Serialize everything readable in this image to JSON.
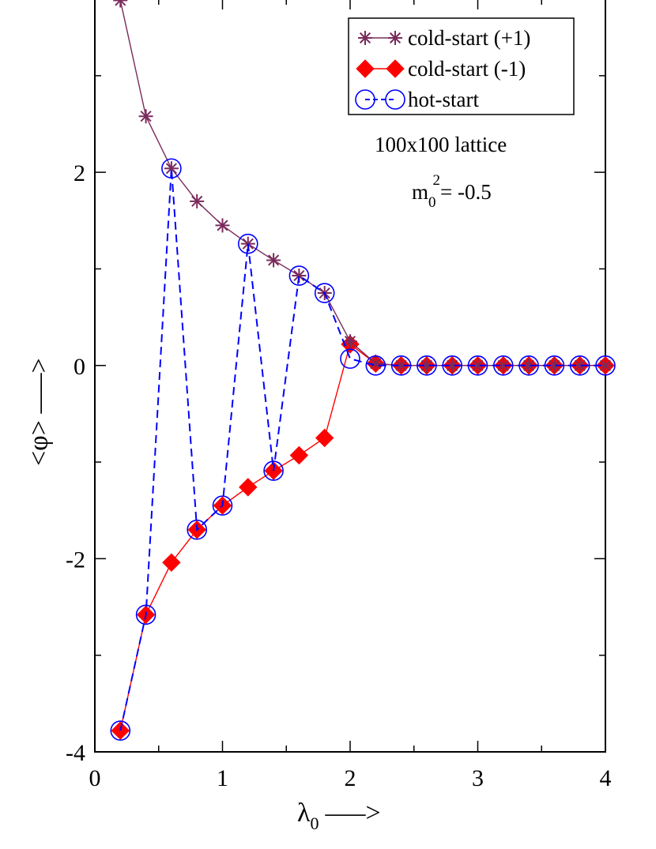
{
  "chart_data": {
    "type": "line",
    "xlabel": "λ",
    "xlabel_subscript": "0",
    "xlabel_arrow": "—–>",
    "ylabel": "<φ> —–>",
    "xlim": [
      0,
      4
    ],
    "ylim": [
      -4,
      3.8
    ],
    "x_ticks": [
      0,
      1,
      2,
      3,
      4
    ],
    "x_tick_labels": [
      "0",
      "1",
      "2",
      "3",
      "4"
    ],
    "y_ticks": [
      -4,
      -2,
      0,
      2
    ],
    "y_tick_labels": [
      "-4",
      "-2",
      "0",
      "2"
    ],
    "x_minor_step": 0.5,
    "y_minor_step": 1,
    "grid": false,
    "legend_position": "top-right",
    "series": [
      {
        "name": "cold-start (+1)",
        "color": "#7a2b5c",
        "marker": "asterisk",
        "line": "solid",
        "x": [
          0.2,
          0.4,
          0.6,
          0.8,
          1.0,
          1.2,
          1.4,
          1.6,
          1.8,
          2.0,
          2.2,
          2.4,
          2.6,
          2.8,
          3.0,
          3.2,
          3.4,
          3.6,
          3.8,
          4.0
        ],
        "y": [
          3.78,
          2.58,
          2.04,
          1.7,
          1.45,
          1.26,
          1.09,
          0.93,
          0.75,
          0.25,
          0.02,
          0.0,
          0.0,
          0.0,
          0.0,
          0.0,
          0.0,
          0.0,
          0.0,
          0.0
        ]
      },
      {
        "name": "cold-start (-1)",
        "color": "#ff0000",
        "marker": "diamond",
        "line": "solid",
        "x": [
          0.2,
          0.4,
          0.6,
          0.8,
          1.0,
          1.2,
          1.4,
          1.6,
          1.8,
          2.0,
          2.2,
          2.4,
          2.6,
          2.8,
          3.0,
          3.2,
          3.4,
          3.6,
          3.8,
          4.0
        ],
        "y": [
          -3.78,
          -2.58,
          -2.04,
          -1.7,
          -1.45,
          -1.26,
          -1.09,
          -0.93,
          -0.75,
          0.22,
          0.02,
          0.0,
          0.0,
          0.0,
          0.0,
          0.0,
          0.0,
          0.0,
          0.0,
          0.0
        ]
      },
      {
        "name": "hot-start",
        "color": "#0000ff",
        "marker": "circle",
        "line": "dashed",
        "x": [
          0.2,
          0.4,
          0.6,
          0.8,
          1.0,
          1.2,
          1.4,
          1.6,
          1.8,
          2.0,
          2.2,
          2.4,
          2.6,
          2.8,
          3.0,
          3.2,
          3.4,
          3.6,
          3.8,
          4.0
        ],
        "y": [
          -3.78,
          -2.58,
          2.04,
          -1.7,
          -1.45,
          1.26,
          -1.09,
          0.93,
          0.75,
          0.07,
          0.0,
          0.0,
          0.0,
          0.0,
          0.0,
          0.0,
          0.0,
          0.0,
          0.0,
          0.0
        ]
      }
    ],
    "annotations": [
      {
        "text": "100x100 lattice"
      },
      {
        "text": "m",
        "subscript": "0",
        "superscript": "2",
        "suffix": "= -0.5"
      }
    ]
  }
}
